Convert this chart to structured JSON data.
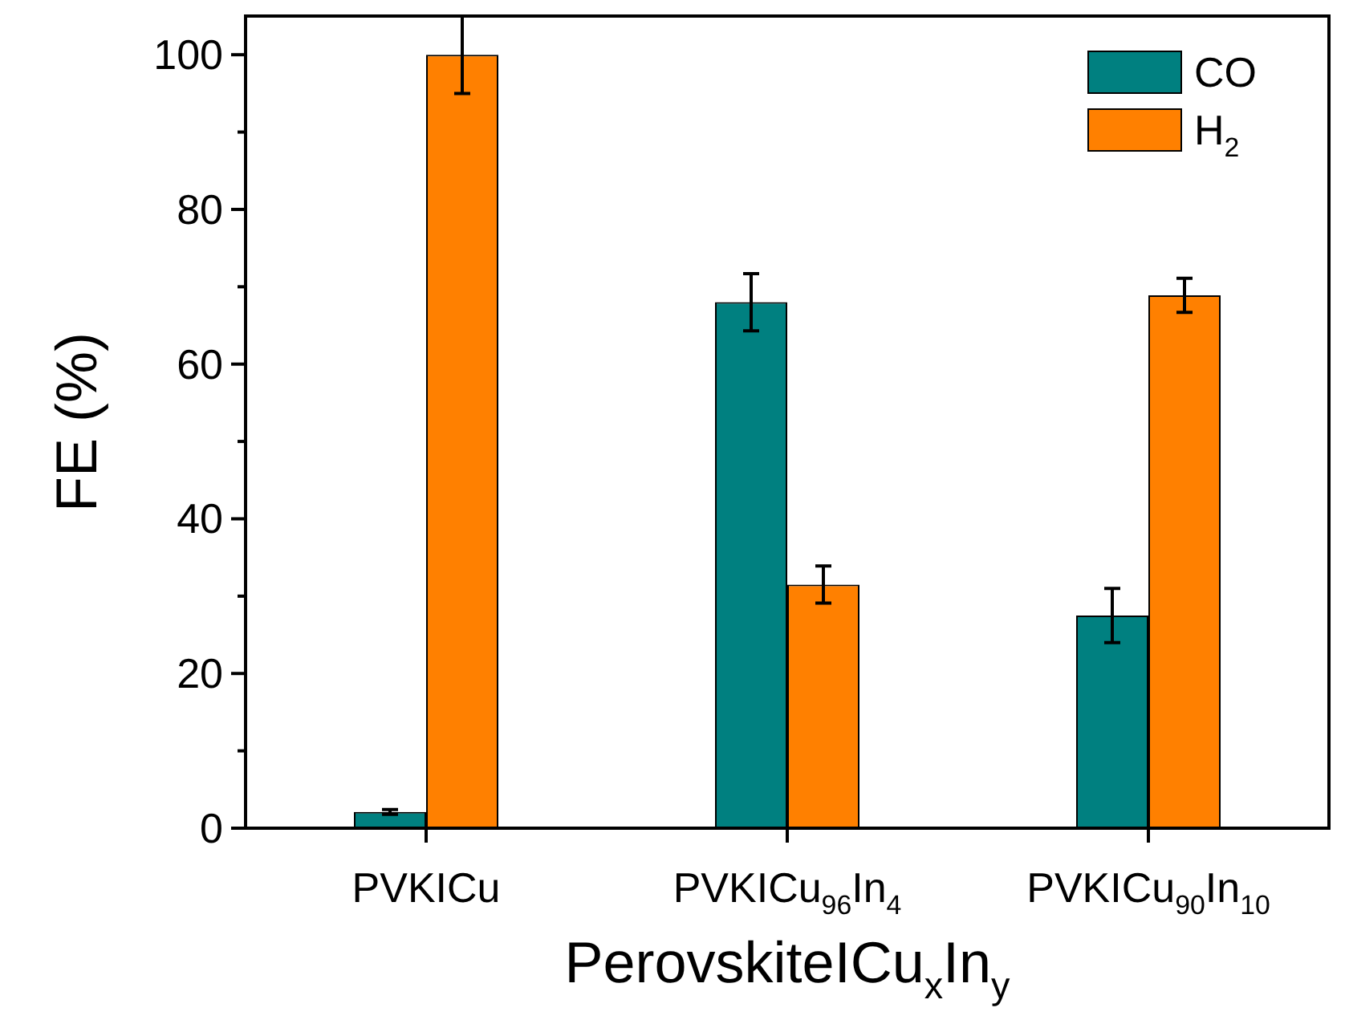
{
  "chart_data": {
    "type": "bar",
    "xlabel": "PerovskiteICu$_{x}$In$_{y}$",
    "ylabel": "FE (%)",
    "categories": [
      "PVKICu",
      "PVKICu$_{96}$In$_{4}$",
      "PVKICu$_{90}$In$_{10}$"
    ],
    "series": [
      {
        "name": "CO",
        "color": "#008080",
        "values": [
          2.1,
          68.0,
          27.5
        ],
        "errors": [
          0.3,
          3.7,
          3.5
        ]
      },
      {
        "name": "H$_{2}$",
        "color": "#ff8000",
        "values": [
          100,
          31.5,
          68.9
        ],
        "errors": [
          5,
          2.4,
          2.2
        ]
      }
    ],
    "ylim": [
      0,
      105
    ],
    "yticks": [
      0,
      {
        "value": 10,
        "label": null
      },
      20,
      {
        "value": 30,
        "label": null
      },
      40,
      {
        "value": 50,
        "label": null
      },
      60,
      {
        "value": 70,
        "label": null
      },
      80,
      {
        "value": 90,
        "label": null
      },
      100
    ],
    "grid": false,
    "legend": "top right"
  }
}
